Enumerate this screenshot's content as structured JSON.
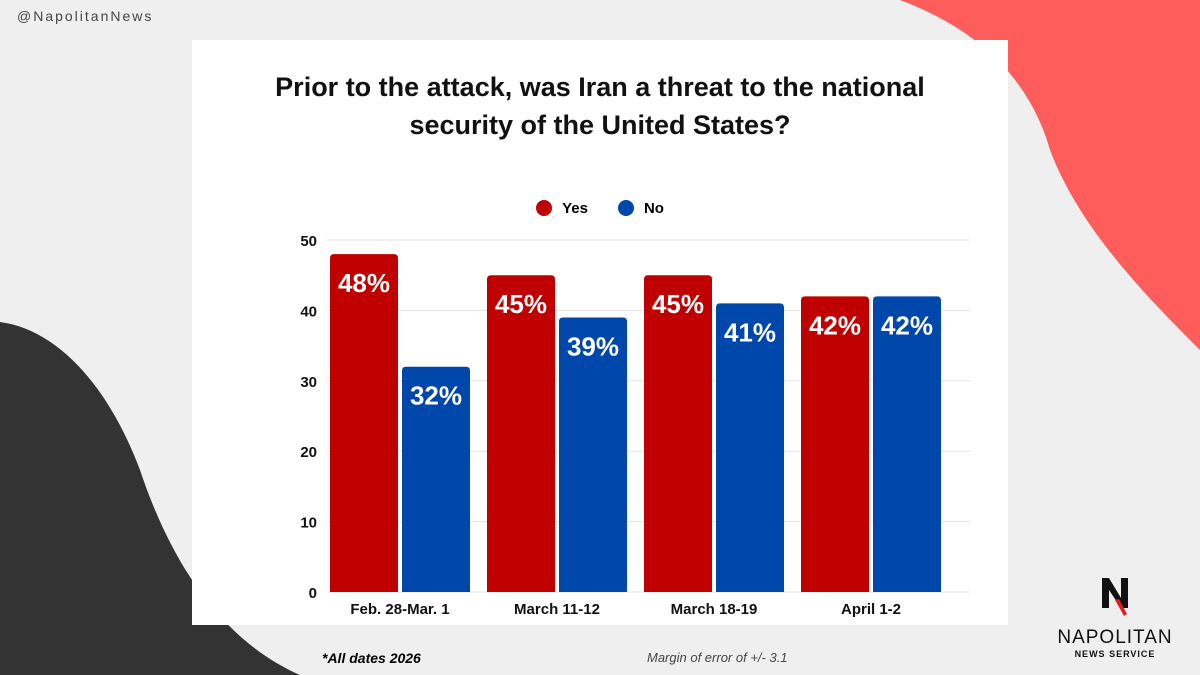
{
  "handle": "@NapolitanNews",
  "colors": {
    "yes": "#c00000",
    "no": "#0047ab",
    "accent_blob": "#ff5c5c",
    "dark_blob": "#333333"
  },
  "chart_data": {
    "type": "bar",
    "title": "Prior to the attack, was Iran a threat to the national security of the United States?",
    "categories": [
      "Feb. 28-Mar. 1",
      "March 11-12",
      "March 18-19",
      "April 1-2"
    ],
    "series": [
      {
        "name": "Yes",
        "values": [
          48,
          45,
          45,
          42
        ]
      },
      {
        "name": "No",
        "values": [
          32,
          39,
          41,
          42
        ]
      }
    ],
    "data_labels": [
      [
        "48%",
        "45%",
        "45%",
        "42%"
      ],
      [
        "32%",
        "39%",
        "41%",
        "42%"
      ]
    ],
    "yticks": [
      0,
      10,
      20,
      30,
      40,
      50
    ],
    "ylim": [
      0,
      50
    ],
    "xlabel": "",
    "ylabel": "",
    "grid": true,
    "legend": "top-center"
  },
  "footnote": "*All dates 2026",
  "margin_note": "Margin of error of +/- 3.1",
  "logo": {
    "name": "NAPOLITAN",
    "sub": "NEWS SERVICE"
  }
}
